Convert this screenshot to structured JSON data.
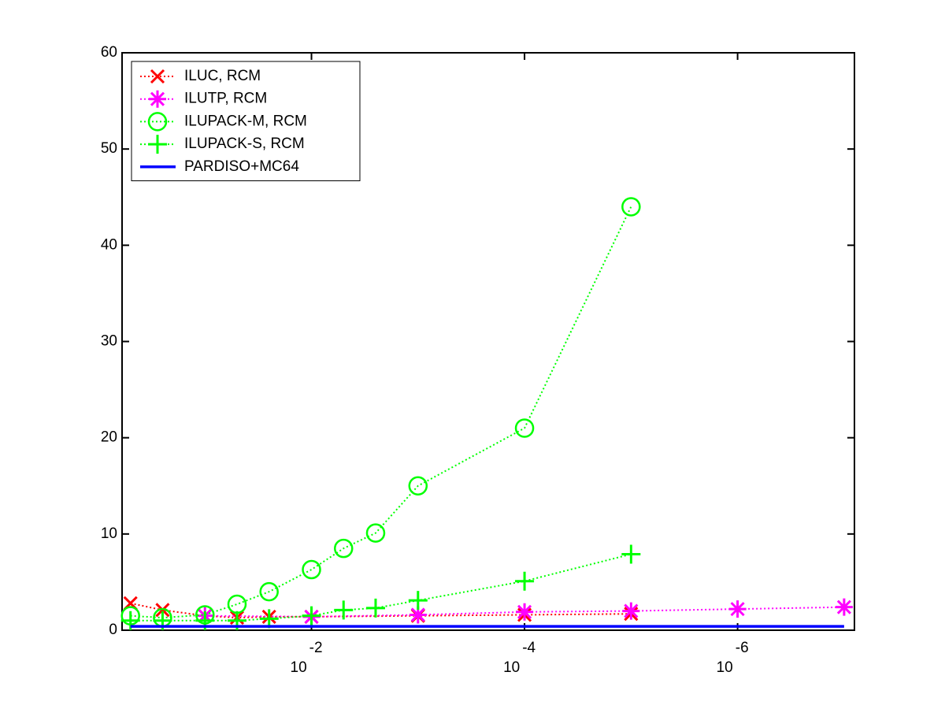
{
  "chart_data": {
    "type": "line",
    "xscale": "log",
    "xlim": [
      0.6,
      8e-08
    ],
    "ylim": [
      0,
      60
    ],
    "yticks": [
      0,
      10,
      20,
      30,
      40,
      50,
      60
    ],
    "xticks": [
      {
        "value": 0.01,
        "label": "10^-2"
      },
      {
        "value": 0.0001,
        "label": "10^-4"
      },
      {
        "value": 1e-06,
        "label": "10^-6"
      }
    ],
    "legend": "upper left",
    "series": [
      {
        "name": "ILUC, RCM",
        "color": "#ff0000",
        "marker": "x",
        "linestyle": "dotted",
        "x": [
          0.5,
          0.25,
          0.1,
          0.05,
          0.025,
          0.01,
          0.001,
          0.0001,
          1e-05
        ],
        "values": [
          2.8,
          2.1,
          1.5,
          1.3,
          1.4,
          1.4,
          1.5,
          1.6,
          1.7
        ]
      },
      {
        "name": "ILUTP, RCM",
        "color": "#ff00ff",
        "marker": "star",
        "linestyle": "dotted",
        "x": [
          0.1,
          0.01,
          0.001,
          0.0001,
          1e-05,
          1e-06,
          1e-07
        ],
        "values": [
          1.5,
          1.4,
          1.6,
          1.9,
          2.0,
          2.2,
          2.4
        ]
      },
      {
        "name": "ILUPACK-M, RCM",
        "color": "#00ff00",
        "marker": "circle",
        "linestyle": "dotted",
        "x": [
          0.5,
          0.25,
          0.1,
          0.05,
          0.025,
          0.01,
          0.005,
          0.0025,
          0.001,
          0.0001,
          1e-05
        ],
        "values": [
          1.5,
          1.3,
          1.6,
          2.7,
          4.0,
          6.3,
          8.5,
          10.1,
          15,
          21,
          44
        ]
      },
      {
        "name": "ILUPACK-S, RCM",
        "color": "#00ff00",
        "marker": "plus",
        "linestyle": "dotted",
        "x": [
          0.5,
          0.25,
          0.1,
          0.05,
          0.025,
          0.01,
          0.005,
          0.0025,
          0.001,
          0.0001,
          1e-05
        ],
        "values": [
          1.0,
          1.0,
          1.0,
          1.0,
          1.2,
          1.5,
          2.1,
          2.3,
          3.1,
          5.1,
          7.9
        ]
      },
      {
        "name": "PARDISO+MC64",
        "color": "#0000ff",
        "marker": "none",
        "linestyle": "solid",
        "x": [
          0.5,
          1e-07
        ],
        "values": [
          0.4,
          0.4
        ]
      }
    ]
  }
}
